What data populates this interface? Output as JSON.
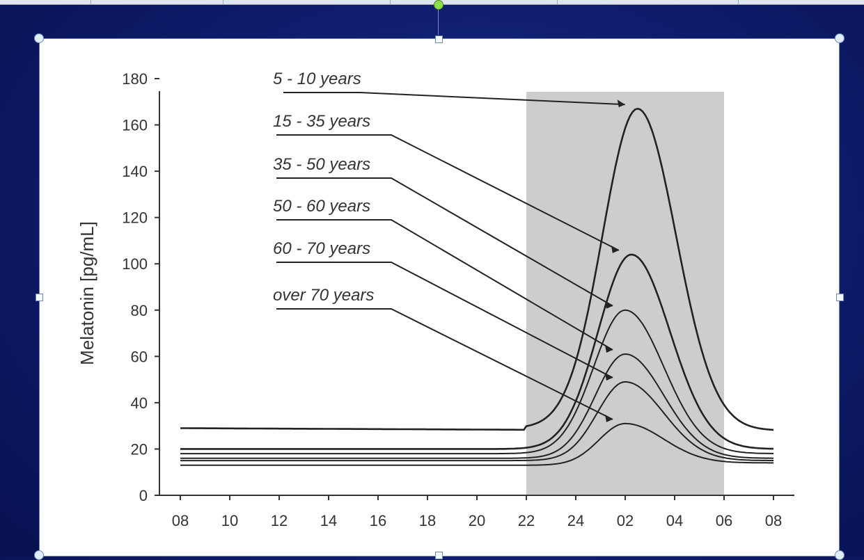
{
  "chart_data": {
    "type": "line",
    "ylabel": "Melatonin [pg/mL]",
    "xlabel": "",
    "ylim": [
      0,
      180
    ],
    "yticks": [
      0,
      20,
      40,
      60,
      80,
      100,
      120,
      140,
      160,
      180
    ],
    "x_tick_labels": [
      "08",
      "10",
      "12",
      "14",
      "16",
      "18",
      "20",
      "22",
      "24",
      "02",
      "04",
      "06",
      "08"
    ],
    "xlim_hours": [
      8,
      32
    ],
    "shaded_period": {
      "start": "22",
      "end": "06",
      "color": "#cdcdcd"
    },
    "series": [
      {
        "name": "5 - 10 years",
        "baseline": 29,
        "peak": 167,
        "peak_time": "02:30",
        "night_low": 28
      },
      {
        "name": "15 - 35 years",
        "baseline": 20,
        "peak": 104,
        "peak_time": "02:15",
        "night_low": 20
      },
      {
        "name": "35 - 50 years",
        "baseline": 18,
        "peak": 80,
        "peak_time": "02:00",
        "night_low": 18
      },
      {
        "name": "50 - 60 years",
        "baseline": 16,
        "peak": 61,
        "peak_time": "02:00",
        "night_low": 16
      },
      {
        "name": "60 - 70 years",
        "baseline": 15,
        "peak": 49,
        "peak_time": "02:00",
        "night_low": 15
      },
      {
        "name": "over 70 years",
        "baseline": 13,
        "peak": 31,
        "peak_time": "02:00",
        "night_low": 14
      }
    ],
    "grid": false,
    "line_color": "#222222"
  }
}
